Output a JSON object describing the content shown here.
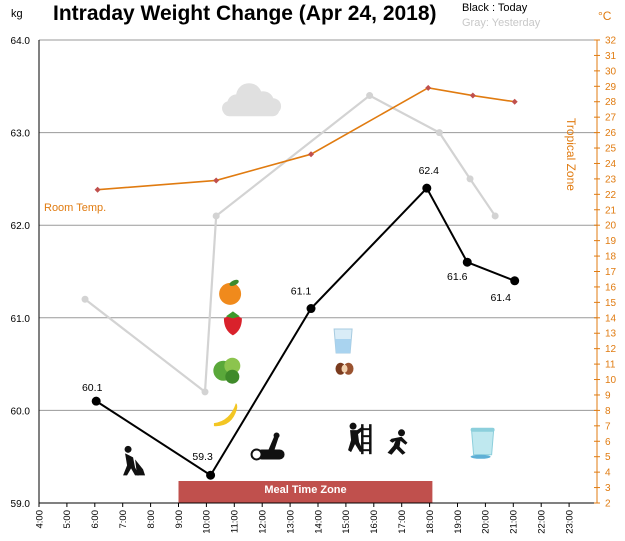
{
  "title": "Intraday Weight Change (Apr 24, 2018)",
  "left_unit": "kg",
  "right_unit": "°C",
  "legend": {
    "today": "Black : Today",
    "yesterday": "Gray: Yesterday"
  },
  "labels": {
    "tropical_zone": "Tropical Zone",
    "room_temp": "Room Temp.",
    "meal_zone": "Meal Time Zone"
  },
  "chart_data": {
    "type": "line",
    "x_ticks": [
      "4:00",
      "5:00",
      "6:00",
      "7:00",
      "8:00",
      "9:00",
      "10:00",
      "11:00",
      "12:00",
      "13:00",
      "14:00",
      "15:00",
      "16:00",
      "17:00",
      "18:00",
      "19:00",
      "20:00",
      "21:00",
      "22:00",
      "23:00"
    ],
    "xlim": [
      4,
      24
    ],
    "ylim": [
      59.0,
      64.0
    ],
    "y_ticks": [
      "59.0",
      "60.0",
      "61.0",
      "62.0",
      "63.0",
      "64.0"
    ],
    "y2lim": [
      2,
      32
    ],
    "meal_zone": [
      9.0,
      18.1
    ],
    "tropical_zone_from": 26,
    "series": [
      {
        "color": "#000000",
        "points": [
          [
            6.05,
            60.1
          ],
          [
            10.15,
            59.3
          ],
          [
            13.75,
            61.1
          ],
          [
            17.9,
            62.4
          ],
          [
            19.35,
            61.6
          ],
          [
            21.05,
            61.4
          ]
        ],
        "labels": [
          "60.1",
          "59.3",
          "61.1",
          "62.4",
          "61.6",
          "61.4"
        ]
      },
      {
        "color": "#d3d3d3",
        "points": [
          [
            5.65,
            61.2
          ],
          [
            9.95,
            60.2
          ],
          [
            10.35,
            62.1
          ],
          [
            15.85,
            63.4
          ],
          [
            18.35,
            63.0
          ],
          [
            19.45,
            62.5
          ],
          [
            20.35,
            62.1
          ]
        ]
      },
      {
        "color": "#e07b10",
        "axis": "right",
        "points": [
          [
            6.1,
            22.3
          ],
          [
            10.35,
            22.9
          ],
          [
            13.75,
            24.6
          ],
          [
            17.95,
            28.9
          ],
          [
            19.55,
            28.4
          ],
          [
            21.05,
            28.0
          ]
        ]
      }
    ],
    "icons": [
      {
        "name": "cloud-icon",
        "x": 11.6,
        "y": 63.35
      },
      {
        "name": "orange-icon",
        "x": 10.85,
        "y": 61.28
      },
      {
        "name": "strawberry-icon",
        "x": 10.95,
        "y": 60.95
      },
      {
        "name": "lettuce-icon",
        "x": 10.75,
        "y": 60.45
      },
      {
        "name": "banana-icon",
        "x": 10.7,
        "y": 59.97
      },
      {
        "name": "glass-icon",
        "x": 14.9,
        "y": 60.75
      },
      {
        "name": "cookie-icon",
        "x": 14.95,
        "y": 60.45
      },
      {
        "name": "digging-person-icon",
        "x": 7.3,
        "y": 59.45
      },
      {
        "name": "log-icon",
        "x": 12.3,
        "y": 59.6
      },
      {
        "name": "climbing-person-icon",
        "x": 15.4,
        "y": 59.7
      },
      {
        "name": "running-person-icon",
        "x": 16.85,
        "y": 59.65
      },
      {
        "name": "cup-icon",
        "x": 19.9,
        "y": 59.65
      }
    ]
  }
}
